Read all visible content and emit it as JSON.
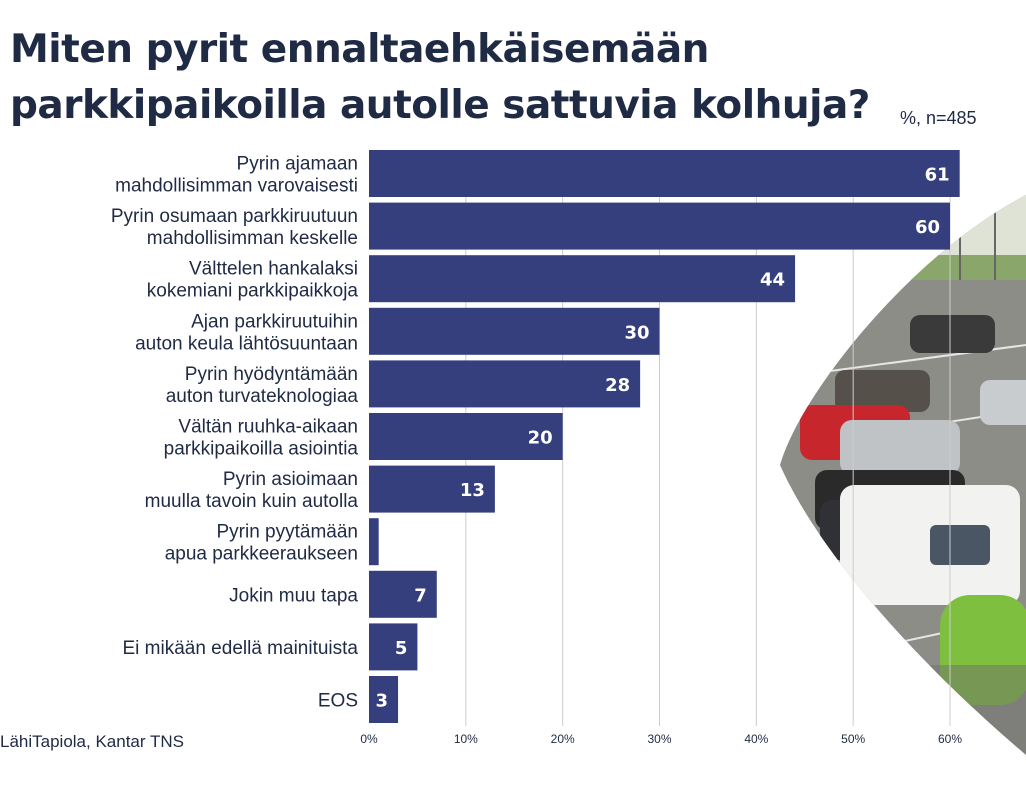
{
  "header": {
    "title_line1": "Miten pyrit ennaltaehkäisemään",
    "title_line2": "parkkipaikoilla autolle sattuvia kolhuja?",
    "subtitle": "%, n=485"
  },
  "source": "LähiTapiola, Kantar TNS",
  "photo_icon": "parking-lot-cars-photo",
  "colors": {
    "bar": "#353f7e",
    "grid": "#cccccc",
    "text": "#1f2a44",
    "label": "#ffffff"
  },
  "chart_data": {
    "type": "bar",
    "orientation": "horizontal",
    "title": "Miten pyrit ennaltaehkäisemään parkkipaikoilla autolle sattuvia kolhuja?",
    "unit": "%",
    "categories": [
      [
        "Pyrin ajamaan",
        "mahdollisimman varovaisesti"
      ],
      [
        "Pyrin osumaan parkkiruutuun",
        "mahdollisimman keskelle"
      ],
      [
        "Välttelen hankalaksi",
        "kokemiani parkkipaikkoja"
      ],
      [
        "Ajan parkkiruutuihin",
        "auton keula lähtösuuntaan"
      ],
      [
        "Pyrin hyödyntämään",
        "auton turvateknologiaa"
      ],
      [
        "Vältän ruuhka-aikaan",
        "parkkipaikoilla asiointia"
      ],
      [
        "Pyrin asioimaan",
        "muulla tavoin kuin autolla"
      ],
      [
        "Pyrin pyytämään",
        "apua parkkeeraukseen"
      ],
      [
        "Jokin muu tapa"
      ],
      [
        "Ei mikään edellä mainituista"
      ],
      [
        "EOS"
      ]
    ],
    "values": [
      61,
      60,
      44,
      30,
      28,
      20,
      13,
      1,
      7,
      5,
      3
    ],
    "xlim": [
      0,
      60
    ],
    "xticks": [
      0,
      10,
      20,
      30,
      40,
      50,
      60
    ],
    "xtick_labels": [
      "0%",
      "10%",
      "20%",
      "30%",
      "40%",
      "50%",
      "60%"
    ],
    "grid": true,
    "data_labels": true
  }
}
